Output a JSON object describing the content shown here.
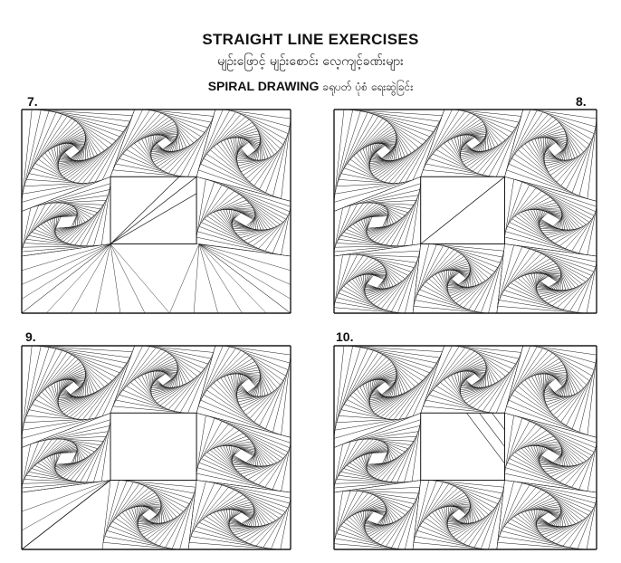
{
  "header": {
    "title": "STRAIGHT LINE EXERCISES",
    "subtitle_myanmar": "မျဉ်းဖြောင့် မျဉ်းစောင်း လေ့ကျင့်ခဏ်းများ",
    "section_english": "SPIRAL DRAWING",
    "section_myanmar": "ခရုပတ် ပုံစံ ရေးဆွဲခြင်း"
  },
  "panels": [
    {
      "number": "7."
    },
    {
      "number": "8."
    },
    {
      "number": "9."
    },
    {
      "number": "10."
    }
  ]
}
